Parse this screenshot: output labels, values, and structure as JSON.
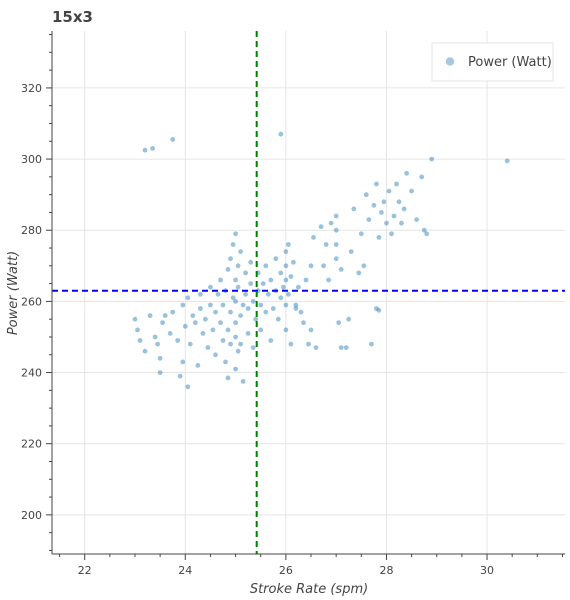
{
  "chart_data": {
    "type": "scatter",
    "title": "15x3",
    "xlabel": "Stroke Rate (spm)",
    "ylabel": "Power (Watt)",
    "xlim": [
      21.35,
      31.55
    ],
    "ylim": [
      189,
      336
    ],
    "xticks": [
      22,
      24,
      26,
      28,
      30
    ],
    "yticks": [
      200,
      220,
      240,
      260,
      280,
      300,
      320
    ],
    "grid": true,
    "legend": {
      "position": "top-right",
      "entries": [
        "Power (Watt)"
      ]
    },
    "colors": {
      "points": "#1f77b4",
      "hline": "#0000ff",
      "vline": "#008000",
      "grid": "#e5e5e5",
      "axis": "#444444"
    },
    "reference_lines": {
      "horizontal_y": 263,
      "vertical_x": 25.42
    },
    "series": [
      {
        "name": "Power (Watt)",
        "points": [
          [
            23.2,
            302.5
          ],
          [
            23.35,
            303
          ],
          [
            23.75,
            305.5
          ],
          [
            25.9,
            307
          ],
          [
            28.9,
            300
          ],
          [
            30.4,
            299.5
          ],
          [
            23.0,
            255
          ],
          [
            23.05,
            252
          ],
          [
            23.1,
            249
          ],
          [
            23.2,
            246
          ],
          [
            23.3,
            256
          ],
          [
            23.4,
            250
          ],
          [
            23.45,
            248
          ],
          [
            23.5,
            244
          ],
          [
            23.55,
            254
          ],
          [
            23.6,
            256
          ],
          [
            23.7,
            251
          ],
          [
            23.75,
            257
          ],
          [
            23.85,
            249
          ],
          [
            23.9,
            239
          ],
          [
            23.95,
            243
          ],
          [
            23.95,
            259
          ],
          [
            24.0,
            253
          ],
          [
            24.05,
            261
          ],
          [
            24.1,
            248
          ],
          [
            24.15,
            256
          ],
          [
            24.2,
            254
          ],
          [
            24.25,
            242
          ],
          [
            24.3,
            258
          ],
          [
            24.3,
            262
          ],
          [
            24.35,
            251
          ],
          [
            24.4,
            255
          ],
          [
            24.45,
            247
          ],
          [
            24.5,
            259
          ],
          [
            24.5,
            264
          ],
          [
            24.55,
            252
          ],
          [
            24.6,
            245
          ],
          [
            24.6,
            257
          ],
          [
            24.65,
            262
          ],
          [
            24.7,
            254
          ],
          [
            24.7,
            266
          ],
          [
            24.75,
            249
          ],
          [
            24.75,
            259
          ],
          [
            24.8,
            243
          ],
          [
            24.8,
            263
          ],
          [
            24.85,
            238.5
          ],
          [
            24.85,
            252
          ],
          [
            24.85,
            269
          ],
          [
            24.9,
            248
          ],
          [
            24.9,
            257
          ],
          [
            24.9,
            272
          ],
          [
            24.95,
            261
          ],
          [
            24.95,
            276
          ],
          [
            25.0,
            241
          ],
          [
            25.0,
            250
          ],
          [
            25.0,
            254
          ],
          [
            25.0,
            260
          ],
          [
            25.0,
            266
          ],
          [
            25.0,
            279
          ],
          [
            25.05,
            246
          ],
          [
            25.05,
            264
          ],
          [
            25.05,
            270
          ],
          [
            25.1,
            248
          ],
          [
            25.1,
            256
          ],
          [
            25.1,
            274
          ],
          [
            25.15,
            237.5
          ],
          [
            25.15,
            259
          ],
          [
            25.2,
            262
          ],
          [
            25.2,
            268
          ],
          [
            25.25,
            251
          ],
          [
            25.25,
            258
          ],
          [
            25.3,
            265
          ],
          [
            25.3,
            271
          ],
          [
            25.35,
            247
          ],
          [
            25.35,
            260
          ],
          [
            25.4,
            255
          ],
          [
            25.45,
            263
          ],
          [
            25.45,
            268
          ],
          [
            25.5,
            252
          ],
          [
            25.5,
            259
          ],
          [
            25.55,
            265
          ],
          [
            25.6,
            257
          ],
          [
            25.6,
            270
          ],
          [
            25.65,
            262
          ],
          [
            25.7,
            249
          ],
          [
            25.7,
            266
          ],
          [
            25.75,
            258
          ],
          [
            25.8,
            263
          ],
          [
            25.8,
            272
          ],
          [
            25.85,
            255
          ],
          [
            25.9,
            261
          ],
          [
            25.9,
            268
          ],
          [
            25.95,
            264
          ],
          [
            26.0,
            252
          ],
          [
            26.0,
            259
          ],
          [
            26.0,
            266
          ],
          [
            26.0,
            270
          ],
          [
            26.0,
            274
          ],
          [
            26.05,
            262
          ],
          [
            26.05,
            276
          ],
          [
            26.1,
            248
          ],
          [
            26.1,
            267
          ],
          [
            26.15,
            271
          ],
          [
            26.2,
            258
          ],
          [
            26.25,
            264
          ],
          [
            26.3,
            257
          ],
          [
            26.35,
            254
          ],
          [
            26.4,
            266
          ],
          [
            26.5,
            252
          ],
          [
            26.55,
            278
          ],
          [
            26.6,
            247
          ],
          [
            26.7,
            281
          ],
          [
            26.75,
            270
          ],
          [
            26.8,
            276
          ],
          [
            26.85,
            266
          ],
          [
            26.9,
            282
          ],
          [
            27.0,
            272
          ],
          [
            27.0,
            276
          ],
          [
            27.0,
            280
          ],
          [
            27.0,
            284
          ],
          [
            27.05,
            254
          ],
          [
            27.1,
            269
          ],
          [
            27.2,
            247
          ],
          [
            27.25,
            255
          ],
          [
            27.3,
            274
          ],
          [
            27.35,
            286
          ],
          [
            27.45,
            268
          ],
          [
            27.5,
            279
          ],
          [
            27.55,
            270
          ],
          [
            27.6,
            290
          ],
          [
            27.65,
            283
          ],
          [
            27.7,
            248
          ],
          [
            27.75,
            287
          ],
          [
            27.8,
            293
          ],
          [
            27.85,
            278
          ],
          [
            27.9,
            285
          ],
          [
            27.95,
            288
          ],
          [
            28.0,
            282
          ],
          [
            28.05,
            291
          ],
          [
            28.1,
            279
          ],
          [
            28.15,
            284
          ],
          [
            28.2,
            293
          ],
          [
            28.25,
            288
          ],
          [
            28.3,
            282
          ],
          [
            28.35,
            286
          ],
          [
            28.4,
            296
          ],
          [
            28.5,
            291
          ],
          [
            28.6,
            283
          ],
          [
            28.7,
            295
          ],
          [
            28.75,
            280
          ],
          [
            28.8,
            279
          ],
          [
            27.8,
            258
          ],
          [
            27.1,
            247
          ],
          [
            26.5,
            270
          ],
          [
            26.2,
            259
          ],
          [
            23.5,
            240
          ],
          [
            24.05,
            236
          ],
          [
            26.45,
            248
          ],
          [
            27.85,
            257.5
          ]
        ]
      }
    ]
  }
}
